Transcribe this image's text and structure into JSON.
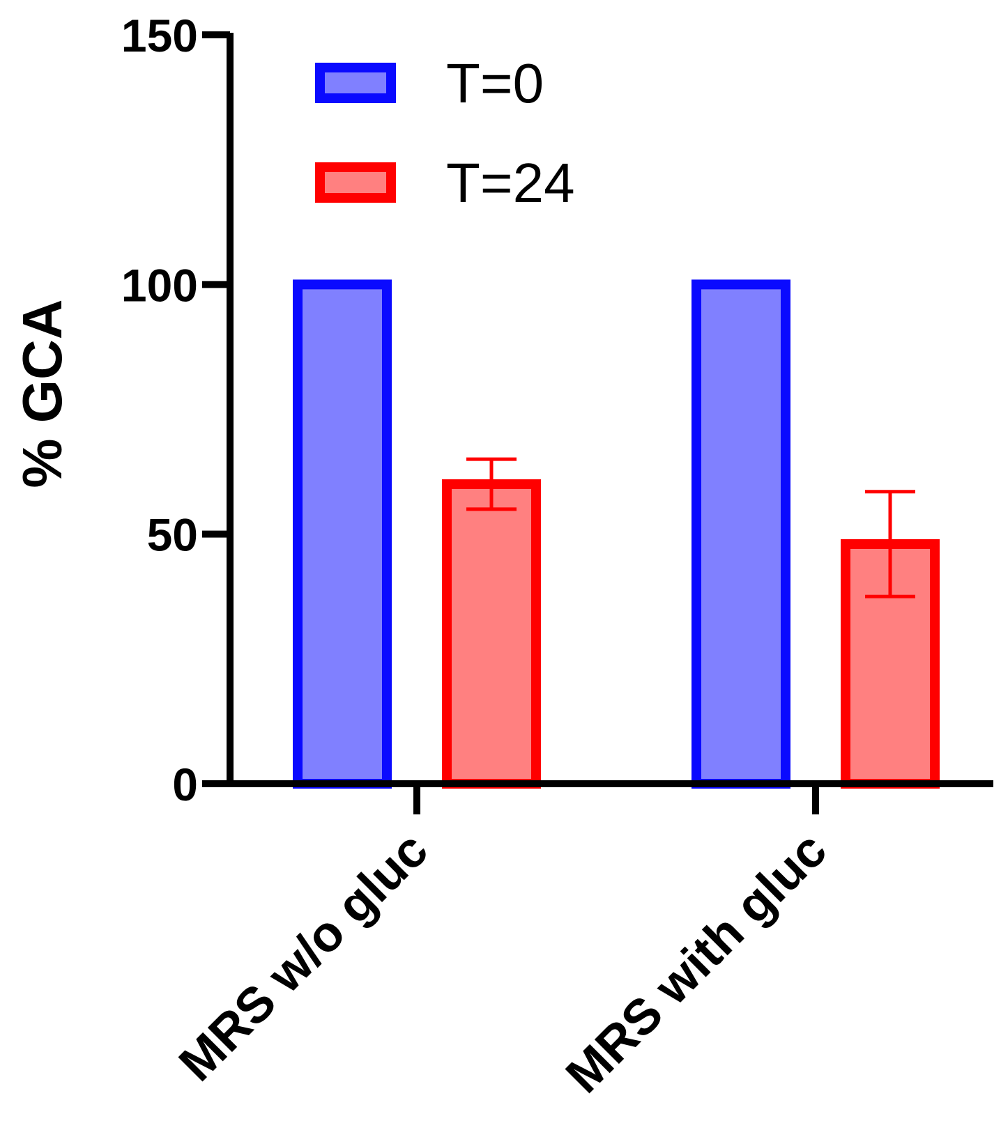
{
  "chart_data": {
    "type": "bar",
    "title": "",
    "xlabel": "",
    "ylabel": "% GCA",
    "ylim": [
      0,
      150
    ],
    "yticks": [
      0,
      50,
      100,
      150
    ],
    "categories": [
      "MRS w/o gluc",
      "MRS with gluc"
    ],
    "series": [
      {
        "name": "T=0",
        "values": [
          100,
          100
        ],
        "errors": [
          0,
          0
        ],
        "stroke": "#0a0aff",
        "fill": "#8080ff"
      },
      {
        "name": "T=24",
        "values": [
          60,
          48
        ],
        "errors": [
          5,
          10.5
        ],
        "stroke": "#ff0000",
        "fill": "#ff8080"
      }
    ],
    "legend_position": "top-left",
    "grid": false
  }
}
